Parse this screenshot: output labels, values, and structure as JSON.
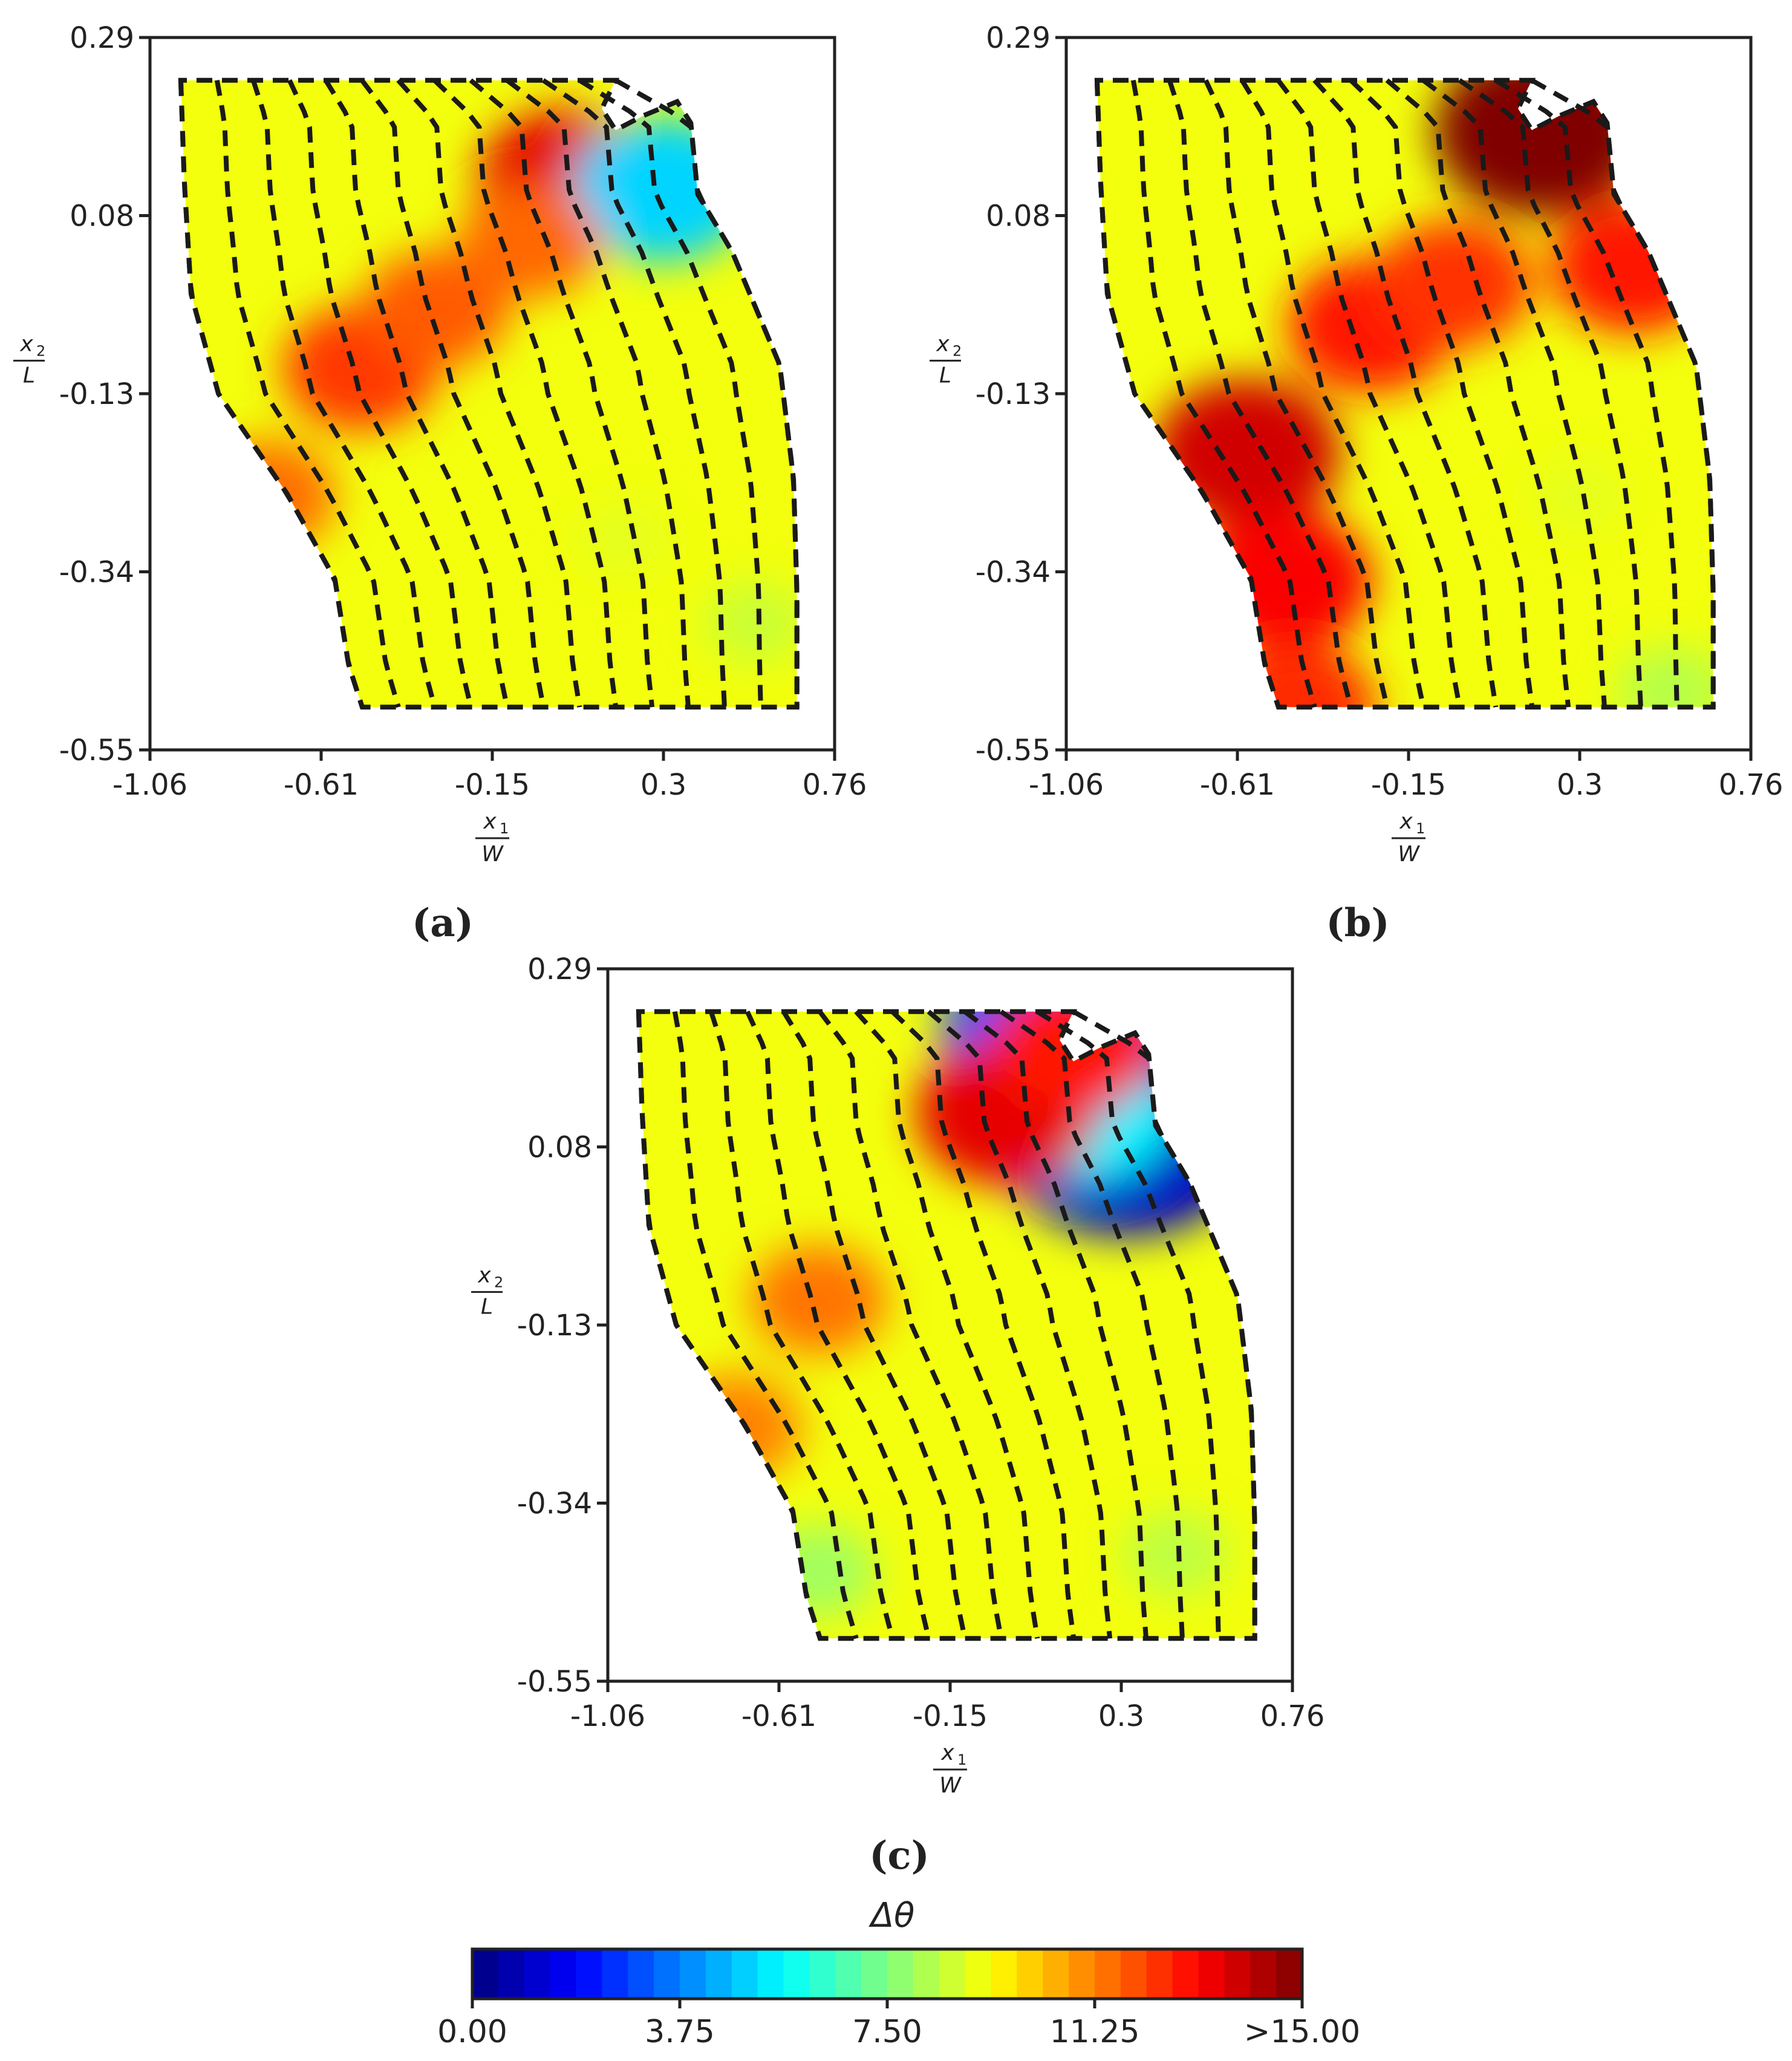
{
  "figure": {
    "colorbar": {
      "title": "Δθ",
      "min": 0.0,
      "max": 15.0,
      "tick_labels": [
        "0.00",
        "3.75",
        "7.50",
        "11.25",
        ">15.00"
      ],
      "tick_values": [
        0.0,
        3.75,
        7.5,
        11.25,
        15.0
      ],
      "colormap": "jet",
      "levels": 32
    },
    "palette": {
      "field_base": "#f3e22a",
      "dash_color": "#1a1a1a",
      "frame_color": "#222222"
    }
  },
  "chart_data": [
    {
      "type": "heatmap",
      "panel_label": "(a)",
      "xlabel": {
        "numerator": "x",
        "numerator_sub": "1",
        "denominator": "W"
      },
      "ylabel": {
        "numerator": "x",
        "numerator_sub": "2",
        "denominator": "L"
      },
      "xlim": [
        -1.06,
        0.76
      ],
      "ylim": [
        -0.55,
        0.29
      ],
      "x_ticks": [
        "-1.06",
        "-0.61",
        "-0.15",
        "0.3",
        "0.76"
      ],
      "y_ticks": [
        "0.29",
        "0.08",
        "-0.13",
        "-0.34",
        "-0.55"
      ],
      "contour_lines": 13,
      "hotspots": [
        {
          "x": 0.05,
          "y": 0.12,
          "value": 13.5
        },
        {
          "x": 0.3,
          "y": 0.11,
          "value": 5.0
        },
        {
          "x": -0.5,
          "y": -0.1,
          "value": 12.3
        },
        {
          "x": -0.3,
          "y": -0.03,
          "value": 11.8
        },
        {
          "x": -0.75,
          "y": -0.25,
          "value": 11.5
        },
        {
          "x": -0.05,
          "y": 0.05,
          "value": 11.6
        },
        {
          "x": 0.55,
          "y": -0.4,
          "value": 8.6
        },
        {
          "x": 0.2,
          "y": -0.3,
          "value": 9.0
        }
      ]
    },
    {
      "type": "heatmap",
      "panel_label": "(b)",
      "xlabel": {
        "numerator": "x",
        "numerator_sub": "1",
        "denominator": "W"
      },
      "ylabel": {
        "numerator": "x",
        "numerator_sub": "2",
        "denominator": "L"
      },
      "xlim": [
        -1.06,
        0.76
      ],
      "ylim": [
        -0.55,
        0.29
      ],
      "x_ticks": [
        "-1.06",
        "-0.61",
        "-0.15",
        "0.3",
        "0.76"
      ],
      "y_ticks": [
        "0.29",
        "0.08",
        "-0.13",
        "-0.34",
        "-0.55"
      ],
      "contour_lines": 13,
      "hotspots": [
        {
          "x": 0.2,
          "y": 0.18,
          "value": 15.0
        },
        {
          "x": -0.58,
          "y": -0.2,
          "value": 13.8
        },
        {
          "x": -0.48,
          "y": -0.35,
          "value": 13.2
        },
        {
          "x": -0.25,
          "y": -0.05,
          "value": 12.8
        },
        {
          "x": -0.03,
          "y": 0.0,
          "value": 12.4
        },
        {
          "x": 0.45,
          "y": 0.02,
          "value": 12.8
        },
        {
          "x": -0.45,
          "y": -0.5,
          "value": 12.5
        },
        {
          "x": 0.3,
          "y": -0.25,
          "value": 9.0
        },
        {
          "x": 0.55,
          "y": -0.48,
          "value": 8.3
        }
      ]
    },
    {
      "type": "heatmap",
      "panel_label": "(c)",
      "xlabel": {
        "numerator": "x",
        "numerator_sub": "1",
        "denominator": "W"
      },
      "ylabel": {
        "numerator": "x",
        "numerator_sub": "2",
        "denominator": "L"
      },
      "xlim": [
        -1.06,
        0.76
      ],
      "ylim": [
        -0.55,
        0.29
      ],
      "x_ticks": [
        "-1.06",
        "-0.61",
        "-0.15",
        "0.3",
        "0.76"
      ],
      "y_ticks": [
        "0.29",
        "0.08",
        "-0.13",
        "-0.34",
        "-0.55"
      ],
      "contour_lines": 13,
      "hotspots": [
        {
          "x": 0.32,
          "y": 0.1,
          "value": 1.0
        },
        {
          "x": 0.22,
          "y": 0.12,
          "value": 5.5
        },
        {
          "x": 0.12,
          "y": 0.21,
          "value": 3.0
        },
        {
          "x": 0.0,
          "y": 0.12,
          "value": 13.5
        },
        {
          "x": 0.18,
          "y": 0.2,
          "value": 12.8
        },
        {
          "x": -0.5,
          "y": -0.1,
          "value": 11.4
        },
        {
          "x": -0.72,
          "y": -0.25,
          "value": 11.2
        },
        {
          "x": -0.5,
          "y": -0.42,
          "value": 8.0
        },
        {
          "x": 0.45,
          "y": -0.4,
          "value": 8.4
        }
      ]
    }
  ]
}
